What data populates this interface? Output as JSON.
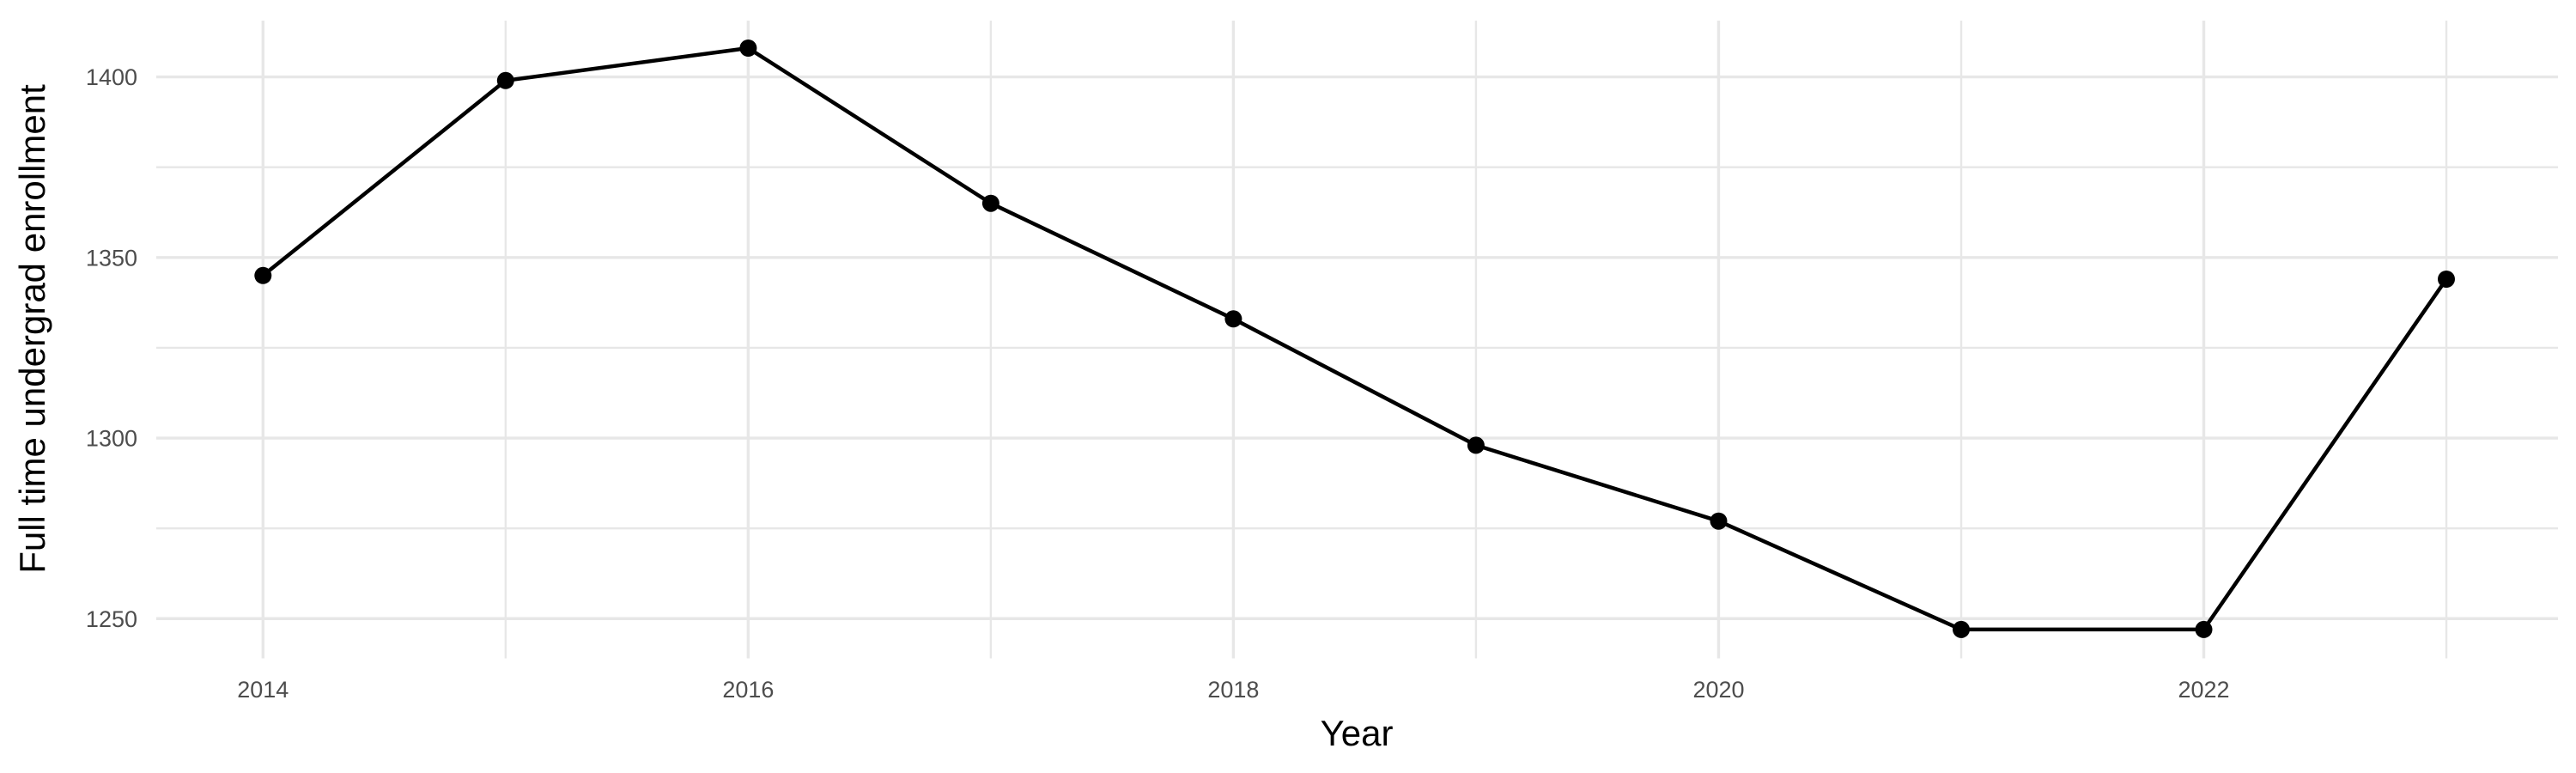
{
  "chart_data": {
    "type": "line",
    "title": "",
    "xlabel": "Year",
    "ylabel": "Full time undergrad enrollment",
    "x": [
      2014,
      2015,
      2016,
      2017,
      2018,
      2019,
      2020,
      2021,
      2022,
      2023
    ],
    "values": [
      1345,
      1399,
      1408,
      1365,
      1333,
      1298,
      1277,
      1247,
      1247,
      1344
    ],
    "series": [
      {
        "name": "Full time undergrad enrollment",
        "values": [
          1345,
          1399,
          1408,
          1365,
          1333,
          1298,
          1277,
          1247,
          1247,
          1344
        ]
      }
    ],
    "xlim": [
      2013.56,
      2023.46
    ],
    "ylim": [
      1239.0,
      1415.6
    ],
    "x_major_ticks": {
      "values": [
        2014,
        2016,
        2018,
        2020,
        2022
      ],
      "labels": [
        "2014",
        "2016",
        "2018",
        "2020",
        "2022"
      ]
    },
    "x_minor_ticks": [
      2015,
      2017,
      2019,
      2021,
      2023
    ],
    "y_major_ticks": {
      "values": [
        1250,
        1300,
        1350,
        1400
      ],
      "labels": [
        "1250",
        "1300",
        "1350",
        "1400"
      ]
    },
    "y_minor_ticks": [
      1275,
      1325,
      1375
    ],
    "grid": "major+minor",
    "legend": "none",
    "marker": "filled-circle",
    "colors": {
      "line": "#000000",
      "point": "#000000",
      "grid_major": "#e7e7e7",
      "grid_minor": "#e7e7e7",
      "tick_label": "#4d4d4d",
      "axis_title": "#000000",
      "background": "#ffffff"
    }
  }
}
